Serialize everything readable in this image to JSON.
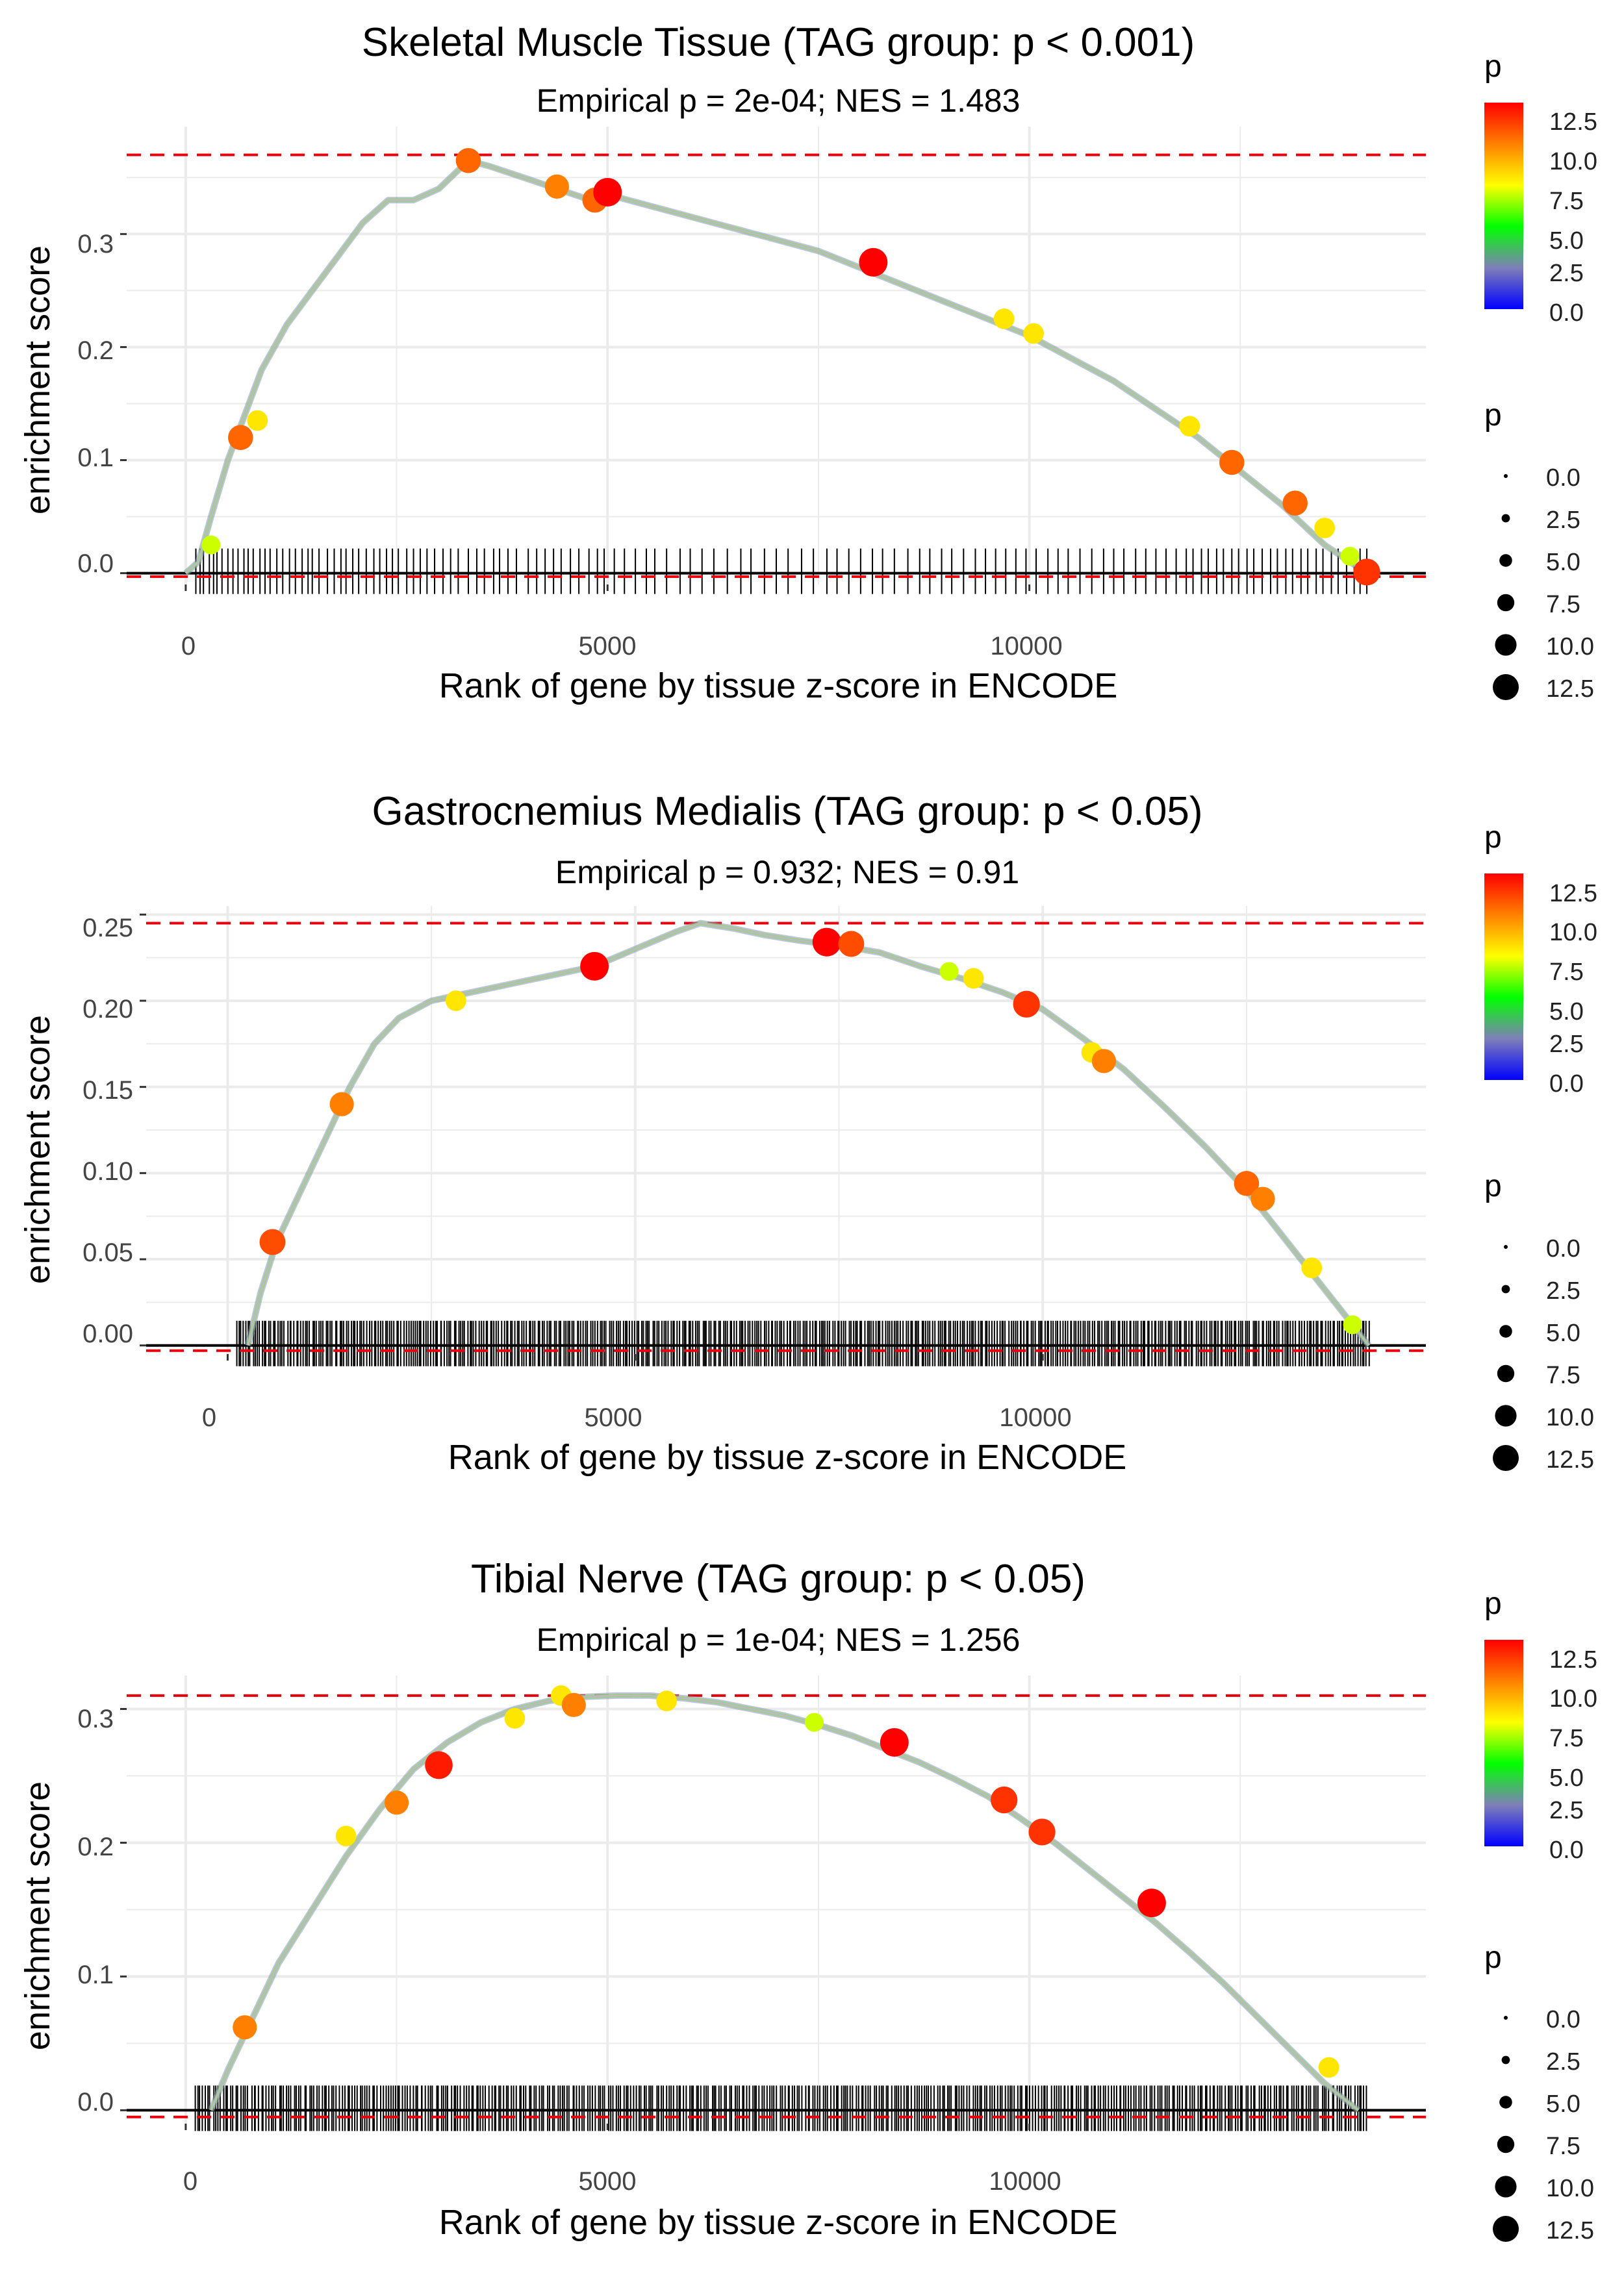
{
  "palette": {
    "curve": "#bbbbbb",
    "grid": "#ebebeb",
    "max_line": "#e8000b",
    "axis": "#000000",
    "gradient": [
      "#0000ff",
      "#7f7fb8",
      "#00ff00",
      "#ffff00",
      "#ff8000",
      "#ff0000"
    ]
  },
  "chart_data": [
    {
      "type": "line",
      "title": "Skeletal Muscle Tissue (TAG group: p < 0.001)",
      "subtitle": "Empirical p = 2e-04; NES = 1.483",
      "xlabel": "Rank of gene by tissue z-score in ENCODE",
      "ylabel": "enrichment score",
      "xlim": [
        -700,
        14700
      ],
      "ylim": [
        -0.01,
        0.395
      ],
      "xticks": [
        0,
        5000,
        10000
      ],
      "xtick_labels": [
        "0",
        "5000",
        "10000"
      ],
      "yticks": [
        0,
        0.1,
        0.2,
        0.3
      ],
      "ytick_labels": [
        "0.0",
        "0.1",
        "0.2",
        "0.3"
      ],
      "max_es": 0.37,
      "min_es": -0.003,
      "curve": {
        "x": [
          0,
          150,
          300,
          500,
          700,
          900,
          1200,
          1500,
          1800,
          2100,
          2400,
          2700,
          3000,
          3350,
          3600,
          4000,
          4400,
          4800,
          5000,
          5500,
          6000,
          6500,
          7000,
          7500,
          8000,
          8500,
          9000,
          9500,
          10000,
          10500,
          11000,
          11500,
          12000,
          12500,
          13000,
          13500,
          14000
        ],
        "y": [
          0,
          0.01,
          0.05,
          0.1,
          0.14,
          0.18,
          0.22,
          0.25,
          0.28,
          0.31,
          0.33,
          0.33,
          0.34,
          0.365,
          0.36,
          0.35,
          0.34,
          0.33,
          0.335,
          0.325,
          0.315,
          0.305,
          0.295,
          0.285,
          0.27,
          0.255,
          0.24,
          0.225,
          0.21,
          0.19,
          0.17,
          0.145,
          0.12,
          0.09,
          0.06,
          0.025,
          0
        ]
      },
      "points": [
        {
          "x": 300,
          "y": 0.025,
          "p": 7
        },
        {
          "x": 650,
          "y": 0.12,
          "p": 10.5
        },
        {
          "x": 850,
          "y": 0.135,
          "p": 8
        },
        {
          "x": 3350,
          "y": 0.365,
          "p": 10.5
        },
        {
          "x": 4400,
          "y": 0.342,
          "p": 10
        },
        {
          "x": 4850,
          "y": 0.33,
          "p": 10.5
        },
        {
          "x": 5000,
          "y": 0.337,
          "p": 12.5
        },
        {
          "x": 8150,
          "y": 0.275,
          "p": 12.5
        },
        {
          "x": 9700,
          "y": 0.225,
          "p": 8
        },
        {
          "x": 10050,
          "y": 0.212,
          "p": 8
        },
        {
          "x": 11900,
          "y": 0.13,
          "p": 8
        },
        {
          "x": 12400,
          "y": 0.098,
          "p": 10.5
        },
        {
          "x": 13150,
          "y": 0.062,
          "p": 10.5
        },
        {
          "x": 13500,
          "y": 0.04,
          "p": 8
        },
        {
          "x": 13800,
          "y": 0.015,
          "p": 7
        },
        {
          "x": 14000,
          "y": 0.001,
          "p": 11.5
        }
      ],
      "hits": [
        120,
        170,
        210,
        280,
        330,
        370,
        430,
        500,
        560,
        620,
        690,
        740,
        800,
        880,
        940,
        1000,
        1080,
        1150,
        1230,
        1300,
        1380,
        1450,
        1500,
        1580,
        1680,
        1760,
        1840,
        1900,
        1980,
        2050,
        2140,
        2230,
        2300,
        2380,
        2450,
        2520,
        2620,
        2700,
        2780,
        2860,
        2950,
        3050,
        3140,
        3230,
        3350,
        3450,
        3540,
        3650,
        3720,
        3820,
        3920,
        4060,
        4160,
        4260,
        4360,
        4450,
        4560,
        4660,
        4780,
        4880,
        4960,
        5080,
        5200,
        5330,
        5460,
        5560,
        5700,
        5860,
        5980,
        6120,
        6260,
        6420,
        6580,
        6700,
        6860,
        7000,
        7140,
        7300,
        7440,
        7600,
        7720,
        7860,
        8000,
        8140,
        8260,
        8400,
        8560,
        8700,
        8820,
        8960,
        9080,
        9220,
        9360,
        9480,
        9600,
        9720,
        9840,
        9960,
        10080,
        10220,
        10340,
        10460,
        10600,
        10740,
        10880,
        11000,
        11120,
        11260,
        11380,
        11500,
        11620,
        11740,
        11860,
        11940,
        12040,
        12120,
        12220,
        12300,
        12400,
        12480,
        12580,
        12660,
        12760,
        12860,
        12940,
        13040,
        13120,
        13220,
        13300,
        13400,
        13480,
        13580,
        13660,
        13760,
        13850,
        13920,
        14000
      ]
    },
    {
      "type": "line",
      "title": "Gastrocnemius Medialis (TAG group: p < 0.05)",
      "subtitle": "Empirical p = 0.932; NES = 0.91",
      "xlabel": "Rank of gene by tissue z-score in ENCODE",
      "ylabel": "enrichment score",
      "xlim": [
        -1000,
        14700
      ],
      "ylim": [
        -0.005,
        0.255
      ],
      "xticks": [
        0,
        5000,
        10000
      ],
      "xtick_labels": [
        "0",
        "5000",
        "10000"
      ],
      "yticks": [
        0,
        0.05,
        0.1,
        0.15,
        0.2,
        0.25
      ],
      "ytick_labels": [
        "0.00",
        "0.05",
        "0.10",
        "0.15",
        "0.20",
        "0.25"
      ],
      "max_es": 0.245,
      "min_es": -0.003,
      "curve": {
        "x": [
          250,
          400,
          600,
          900,
          1200,
          1500,
          1800,
          2100,
          2500,
          3000,
          3500,
          4000,
          4500,
          5000,
          5500,
          5800,
          6200,
          6600,
          7000,
          7500,
          8000,
          8500,
          9000,
          9500,
          10000,
          10500,
          11000,
          11500,
          12000,
          12500,
          13000,
          13500,
          14000
        ],
        "y": [
          0,
          0.03,
          0.06,
          0.09,
          0.12,
          0.15,
          0.175,
          0.19,
          0.2,
          0.205,
          0.21,
          0.215,
          0.22,
          0.23,
          0.24,
          0.245,
          0.242,
          0.238,
          0.235,
          0.232,
          0.228,
          0.22,
          0.213,
          0.205,
          0.195,
          0.178,
          0.16,
          0.138,
          0.115,
          0.09,
          0.06,
          0.03,
          0
        ]
      },
      "points": [
        {
          "x": 550,
          "y": 0.06,
          "p": 11
        },
        {
          "x": 1400,
          "y": 0.14,
          "p": 10
        },
        {
          "x": 2800,
          "y": 0.2,
          "p": 8
        },
        {
          "x": 4500,
          "y": 0.22,
          "p": 12.5
        },
        {
          "x": 7350,
          "y": 0.234,
          "p": 12.5
        },
        {
          "x": 7650,
          "y": 0.233,
          "p": 11
        },
        {
          "x": 8850,
          "y": 0.217,
          "p": 7
        },
        {
          "x": 9150,
          "y": 0.213,
          "p": 8
        },
        {
          "x": 9800,
          "y": 0.198,
          "p": 11.5
        },
        {
          "x": 10600,
          "y": 0.17,
          "p": 8
        },
        {
          "x": 10750,
          "y": 0.165,
          "p": 10
        },
        {
          "x": 12500,
          "y": 0.094,
          "p": 10.5
        },
        {
          "x": 12700,
          "y": 0.085,
          "p": 10
        },
        {
          "x": 13300,
          "y": 0.045,
          "p": 8
        },
        {
          "x": 13800,
          "y": 0.012,
          "p": 7
        }
      ],
      "hits_dense": {
        "start": 100,
        "end": 14000,
        "step": 28
      }
    },
    {
      "type": "line",
      "title": "Tibial Nerve (TAG group: p < 0.05)",
      "subtitle": "Empirical p = 1e-04; NES = 1.256",
      "xlabel": "Rank of gene by tissue z-score in ENCODE",
      "ylabel": "enrichment score",
      "xlim": [
        -700,
        14700
      ],
      "ylim": [
        -0.01,
        0.325
      ],
      "xticks": [
        0,
        5000,
        10000
      ],
      "xtick_labels": [
        "0",
        "5000",
        "10000"
      ],
      "yticks": [
        0,
        0.1,
        0.2,
        0.3
      ],
      "ytick_labels": [
        "0.0",
        "0.1",
        "0.2",
        "0.3"
      ],
      "max_es": 0.31,
      "min_es": -0.005,
      "curve": {
        "x": [
          300,
          500,
          800,
          1100,
          1500,
          1900,
          2300,
          2700,
          3100,
          3500,
          3900,
          4300,
          4700,
          5100,
          5500,
          5900,
          6300,
          6700,
          7100,
          7500,
          7900,
          8300,
          8700,
          9100,
          9500,
          9900,
          10300,
          10700,
          11100,
          11500,
          11900,
          12300,
          12700,
          13100,
          13500,
          13900
        ],
        "y": [
          0,
          0.03,
          0.07,
          0.11,
          0.15,
          0.19,
          0.225,
          0.255,
          0.275,
          0.29,
          0.3,
          0.306,
          0.309,
          0.31,
          0.31,
          0.308,
          0.305,
          0.3,
          0.295,
          0.288,
          0.28,
          0.27,
          0.26,
          0.248,
          0.235,
          0.218,
          0.2,
          0.18,
          0.16,
          0.14,
          0.118,
          0.095,
          0.07,
          0.045,
          0.02,
          0
        ]
      },
      "points": [
        {
          "x": 700,
          "y": 0.062,
          "p": 10
        },
        {
          "x": 1900,
          "y": 0.205,
          "p": 8
        },
        {
          "x": 2500,
          "y": 0.23,
          "p": 10
        },
        {
          "x": 3000,
          "y": 0.258,
          "p": 12
        },
        {
          "x": 3900,
          "y": 0.293,
          "p": 8
        },
        {
          "x": 4450,
          "y": 0.31,
          "p": 8
        },
        {
          "x": 4600,
          "y": 0.303,
          "p": 10
        },
        {
          "x": 5700,
          "y": 0.306,
          "p": 8
        },
        {
          "x": 7450,
          "y": 0.29,
          "p": 7
        },
        {
          "x": 8400,
          "y": 0.275,
          "p": 12.5
        },
        {
          "x": 9700,
          "y": 0.232,
          "p": 11.5
        },
        {
          "x": 10150,
          "y": 0.208,
          "p": 11.5
        },
        {
          "x": 11450,
          "y": 0.155,
          "p": 12.5
        },
        {
          "x": 13550,
          "y": 0.032,
          "p": 8
        }
      ],
      "hits_dense": {
        "start": 100,
        "end": 14000,
        "step": 30
      }
    }
  ],
  "legends": {
    "color_title": "p",
    "color_labels": [
      "12.5",
      "10.0",
      "7.5",
      "5.0",
      "2.5",
      "0.0"
    ],
    "size_title": "p",
    "size_labels": [
      "0.0",
      "2.5",
      "5.0",
      "7.5",
      "10.0",
      "12.5"
    ],
    "size_values": [
      0,
      2.5,
      5,
      7.5,
      10,
      12.5
    ]
  }
}
